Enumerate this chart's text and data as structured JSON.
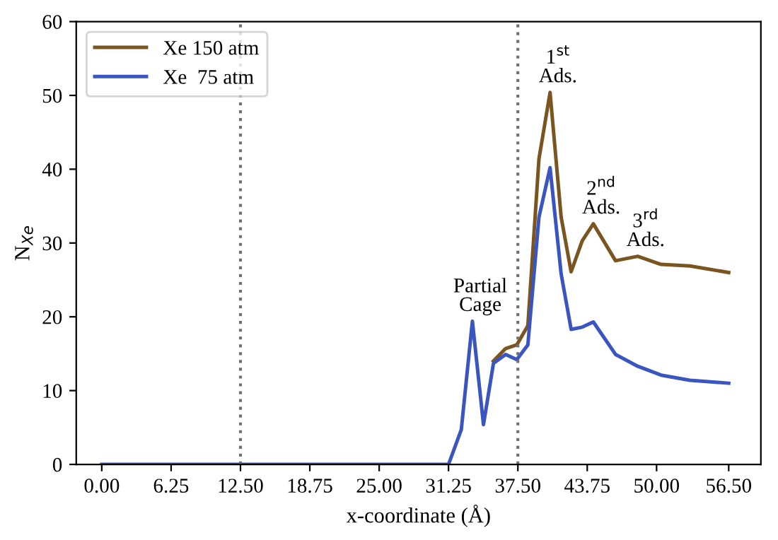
{
  "chart_data": {
    "type": "line",
    "xlabel": "x-coordinate (Å)",
    "ylabel": "N$_{Xe}$",
    "x": [
      0,
      31.25,
      32.4,
      33.4,
      34.4,
      35.3,
      36.4,
      37.4,
      38.4,
      39.4,
      40.4,
      41.4,
      42.3,
      43.3,
      44.3,
      46.3,
      48.3,
      50.4,
      53,
      56.5
    ],
    "series": [
      {
        "name": "Xe 150 atm",
        "color": "#7a5520",
        "values": [
          null,
          null,
          null,
          null,
          null,
          14.0,
          15.7,
          16.2,
          18.8,
          41.4,
          50.4,
          33.5,
          26.1,
          30.3,
          32.6,
          27.6,
          28.2,
          27.1,
          26.9,
          26.0
        ]
      },
      {
        "name": "Xe  75 atm",
        "color": "#3a55c0",
        "values": [
          0,
          0,
          4.7,
          19.4,
          5.4,
          13.7,
          14.9,
          14.2,
          16.2,
          33.5,
          40.2,
          25.8,
          18.3,
          18.6,
          19.3,
          14.9,
          13.3,
          12.1,
          11.4,
          11.0
        ]
      }
    ],
    "xlim": [
      -2.3,
      59.4
    ],
    "ylim": [
      0,
      60
    ],
    "xticks": [
      {
        "value": 0,
        "label": "0.00"
      },
      {
        "value": 6.25,
        "label": "6.25"
      },
      {
        "value": 12.5,
        "label": "12.50"
      },
      {
        "value": 18.75,
        "label": "18.75"
      },
      {
        "value": 25,
        "label": "25.00"
      },
      {
        "value": 31.25,
        "label": "31.25"
      },
      {
        "value": 37.5,
        "label": "37.50"
      },
      {
        "value": 43.75,
        "label": "43.75"
      },
      {
        "value": 50,
        "label": "50.00"
      },
      {
        "value": 56.5,
        "label": "56.50"
      }
    ],
    "yticks": [
      0,
      10,
      20,
      30,
      40,
      50,
      60
    ],
    "ref_lines": [
      {
        "axis": "x",
        "value": 12.5,
        "color": "#707070",
        "line_style": "dotted"
      },
      {
        "axis": "x",
        "value": 37.5,
        "color": "#707070",
        "line_style": "dotted"
      }
    ],
    "annotations": [
      {
        "text": "Partial\nCage",
        "x": 33.4,
        "y": 19.4
      },
      {
        "text": "1$^{st}$\nAds.",
        "x": 40.4,
        "y": 50.4
      },
      {
        "text": "2$^{nd}$\nAds.",
        "x": 44.3,
        "y": 32.6
      },
      {
        "text": "3$^{rd}$\nAds.",
        "x": 48.3,
        "y": 28.2
      }
    ],
    "legend": "top left",
    "grid": false
  }
}
